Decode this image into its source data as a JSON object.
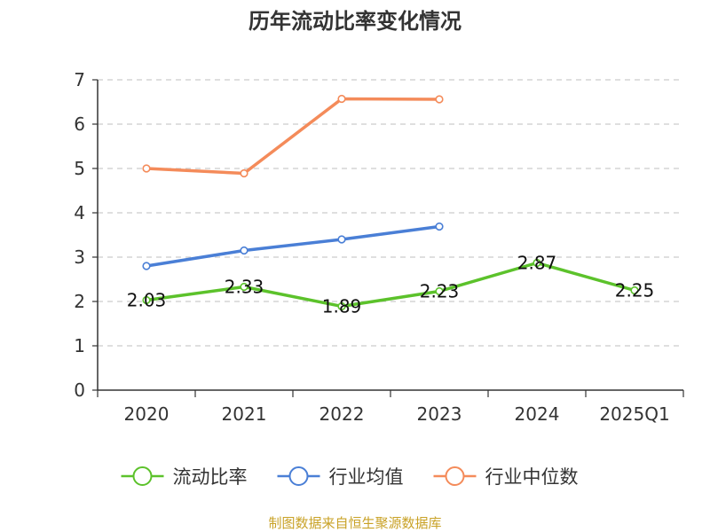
{
  "chart_data": {
    "type": "line",
    "title": "历年流动比率变化情况",
    "categories": [
      "2020",
      "2021",
      "2022",
      "2023",
      "2024",
      "2025Q1"
    ],
    "ylim": [
      0,
      7
    ],
    "yticks": [
      0,
      1,
      2,
      3,
      4,
      5,
      6,
      7
    ],
    "grid": true,
    "legend_position": "bottom",
    "series": [
      {
        "name": "流动比率",
        "color": "#5cc22b",
        "values": [
          2.03,
          2.33,
          1.89,
          2.23,
          2.87,
          2.25
        ],
        "show_labels": true
      },
      {
        "name": "行业均值",
        "color": "#4a7fd6",
        "values": [
          2.8,
          3.15,
          3.4,
          3.69,
          null,
          null
        ],
        "show_labels": false
      },
      {
        "name": "行业中位数",
        "color": "#f48b5a",
        "values": [
          5.0,
          4.89,
          6.57,
          6.56,
          null,
          null
        ],
        "show_labels": false
      }
    ]
  },
  "source_note": "制图数据来自恒生聚源数据库"
}
